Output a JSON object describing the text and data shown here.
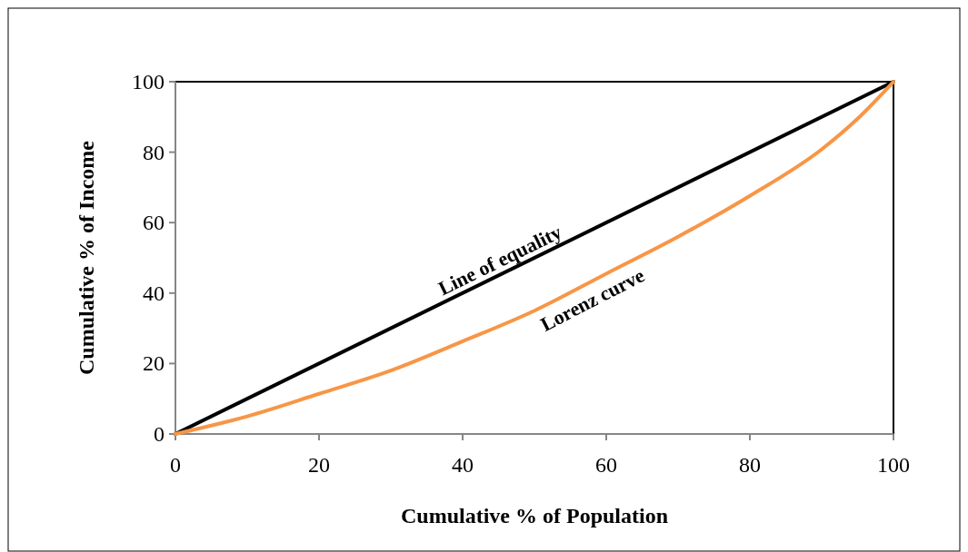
{
  "chart_data": {
    "type": "line",
    "xlabel": "Cumulative % of Population",
    "ylabel": "Cumulative % of Income",
    "xlim": [
      0,
      100
    ],
    "ylim": [
      0,
      100
    ],
    "xticks": [
      0,
      20,
      40,
      60,
      80,
      100
    ],
    "yticks": [
      0,
      20,
      40,
      60,
      80,
      100
    ],
    "grid": false,
    "marker": "none",
    "line_style": "solid",
    "series": [
      {
        "name": "Line of equality",
        "color": "#000000",
        "x": [
          0,
          100
        ],
        "values": [
          0,
          100
        ]
      },
      {
        "name": "Lorenz curve",
        "color": "#f79646",
        "x": [
          0,
          10,
          20,
          30,
          40,
          50,
          60,
          70,
          80,
          90,
          95,
          100
        ],
        "values": [
          0,
          5,
          11.4,
          18,
          26.3,
          35,
          45.5,
          56,
          67.6,
          80.8,
          89.5,
          100
        ]
      }
    ]
  }
}
